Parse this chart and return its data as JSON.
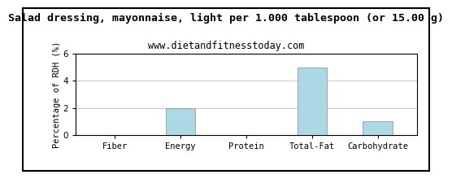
{
  "title": "Salad dressing, mayonnaise, light per 1.000 tablespoon (or 15.00 g)",
  "subtitle": "www.dietandfitnesstoday.com",
  "categories": [
    "Fiber",
    "Energy",
    "Protein",
    "Total-Fat",
    "Carbohydrate"
  ],
  "values": [
    0,
    2.0,
    0,
    5.0,
    1.0
  ],
  "bar_color": "#ADD8E6",
  "ylabel": "Percentage of RDH (%)",
  "ylim": [
    0,
    6
  ],
  "yticks": [
    0,
    2,
    4,
    6
  ],
  "background_color": "#ffffff",
  "plot_bg_color": "#ffffff",
  "grid_color": "#cccccc",
  "border_color": "#000000",
  "title_fontsize": 9.5,
  "subtitle_fontsize": 8.5,
  "tick_fontsize": 7.5,
  "ylabel_fontsize": 7.5,
  "bar_width": 0.45
}
